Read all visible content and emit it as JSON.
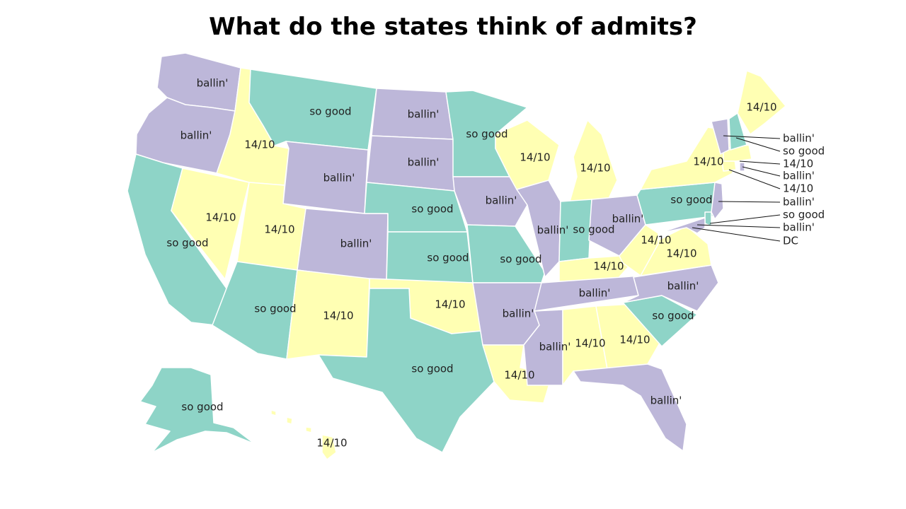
{
  "title": "What do the states think of admits?",
  "colors": {
    "ballin": "#bdb7d9",
    "so_good": "#8ed4c7",
    "fourteen": "#ffffb3"
  },
  "states": [
    {
      "id": "WA",
      "category": "ballin",
      "label": "ballin'"
    },
    {
      "id": "OR",
      "category": "ballin",
      "label": "ballin'"
    },
    {
      "id": "CA",
      "category": "so_good",
      "label": "so good"
    },
    {
      "id": "NV",
      "category": "fourteen",
      "label": "14/10"
    },
    {
      "id": "ID",
      "category": "fourteen",
      "label": "14/10"
    },
    {
      "id": "MT",
      "category": "so_good",
      "label": "so good"
    },
    {
      "id": "WY",
      "category": "ballin",
      "label": "ballin'"
    },
    {
      "id": "UT",
      "category": "fourteen",
      "label": "14/10"
    },
    {
      "id": "AZ",
      "category": "so_good",
      "label": "so good"
    },
    {
      "id": "CO",
      "category": "ballin",
      "label": "ballin'"
    },
    {
      "id": "NM",
      "category": "fourteen",
      "label": "14/10"
    },
    {
      "id": "ND",
      "category": "ballin",
      "label": "ballin'"
    },
    {
      "id": "SD",
      "category": "ballin",
      "label": "ballin'"
    },
    {
      "id": "NE",
      "category": "so_good",
      "label": "so good"
    },
    {
      "id": "KS",
      "category": "so_good",
      "label": "so good"
    },
    {
      "id": "OK",
      "category": "fourteen",
      "label": "14/10"
    },
    {
      "id": "TX",
      "category": "so_good",
      "label": "so good"
    },
    {
      "id": "MN",
      "category": "so_good",
      "label": "so good"
    },
    {
      "id": "IA",
      "category": "ballin",
      "label": "ballin'"
    },
    {
      "id": "MO",
      "category": "so_good",
      "label": "so good"
    },
    {
      "id": "AR",
      "category": "ballin",
      "label": "ballin'"
    },
    {
      "id": "LA",
      "category": "fourteen",
      "label": "14/10"
    },
    {
      "id": "WI",
      "category": "fourteen",
      "label": "14/10"
    },
    {
      "id": "MI",
      "category": "fourteen",
      "label": "14/10"
    },
    {
      "id": "IL",
      "category": "ballin",
      "label": "ballin'"
    },
    {
      "id": "IN",
      "category": "so_good",
      "label": "so good"
    },
    {
      "id": "OH",
      "category": "ballin",
      "label": "ballin'"
    },
    {
      "id": "KY",
      "category": "fourteen",
      "label": "14/10"
    },
    {
      "id": "TN",
      "category": "ballin",
      "label": "ballin'"
    },
    {
      "id": "MS",
      "category": "ballin",
      "label": "ballin'"
    },
    {
      "id": "AL",
      "category": "fourteen",
      "label": "14/10"
    },
    {
      "id": "GA",
      "category": "fourteen",
      "label": "14/10"
    },
    {
      "id": "FL",
      "category": "ballin",
      "label": "ballin'"
    },
    {
      "id": "SC",
      "category": "so_good",
      "label": "so good"
    },
    {
      "id": "NC",
      "category": "ballin",
      "label": "ballin'"
    },
    {
      "id": "VA",
      "category": "fourteen",
      "label": "14/10"
    },
    {
      "id": "WV",
      "category": "fourteen",
      "label": "14/10"
    },
    {
      "id": "PA",
      "category": "so_good",
      "label": "so good"
    },
    {
      "id": "NY",
      "category": "fourteen",
      "label": "14/10"
    },
    {
      "id": "NJ",
      "category": "ballin",
      "label": "ballin'"
    },
    {
      "id": "DE",
      "category": "so_good",
      "label": "so good"
    },
    {
      "id": "MD",
      "category": "ballin",
      "label": "ballin'"
    },
    {
      "id": "DC",
      "category": "ballin",
      "label": "DC"
    },
    {
      "id": "CT",
      "category": "fourteen",
      "label": "14/10"
    },
    {
      "id": "RI",
      "category": "ballin",
      "label": "ballin'"
    },
    {
      "id": "MA",
      "category": "fourteen",
      "label": "14/10"
    },
    {
      "id": "VT",
      "category": "ballin",
      "label": "ballin'"
    },
    {
      "id": "NH",
      "category": "so_good",
      "label": "so good"
    },
    {
      "id": "ME",
      "category": "fourteen",
      "label": "14/10"
    },
    {
      "id": "AK",
      "category": "so_good",
      "label": "so good"
    },
    {
      "id": "HI",
      "category": "fourteen",
      "label": "14/10"
    }
  ]
}
